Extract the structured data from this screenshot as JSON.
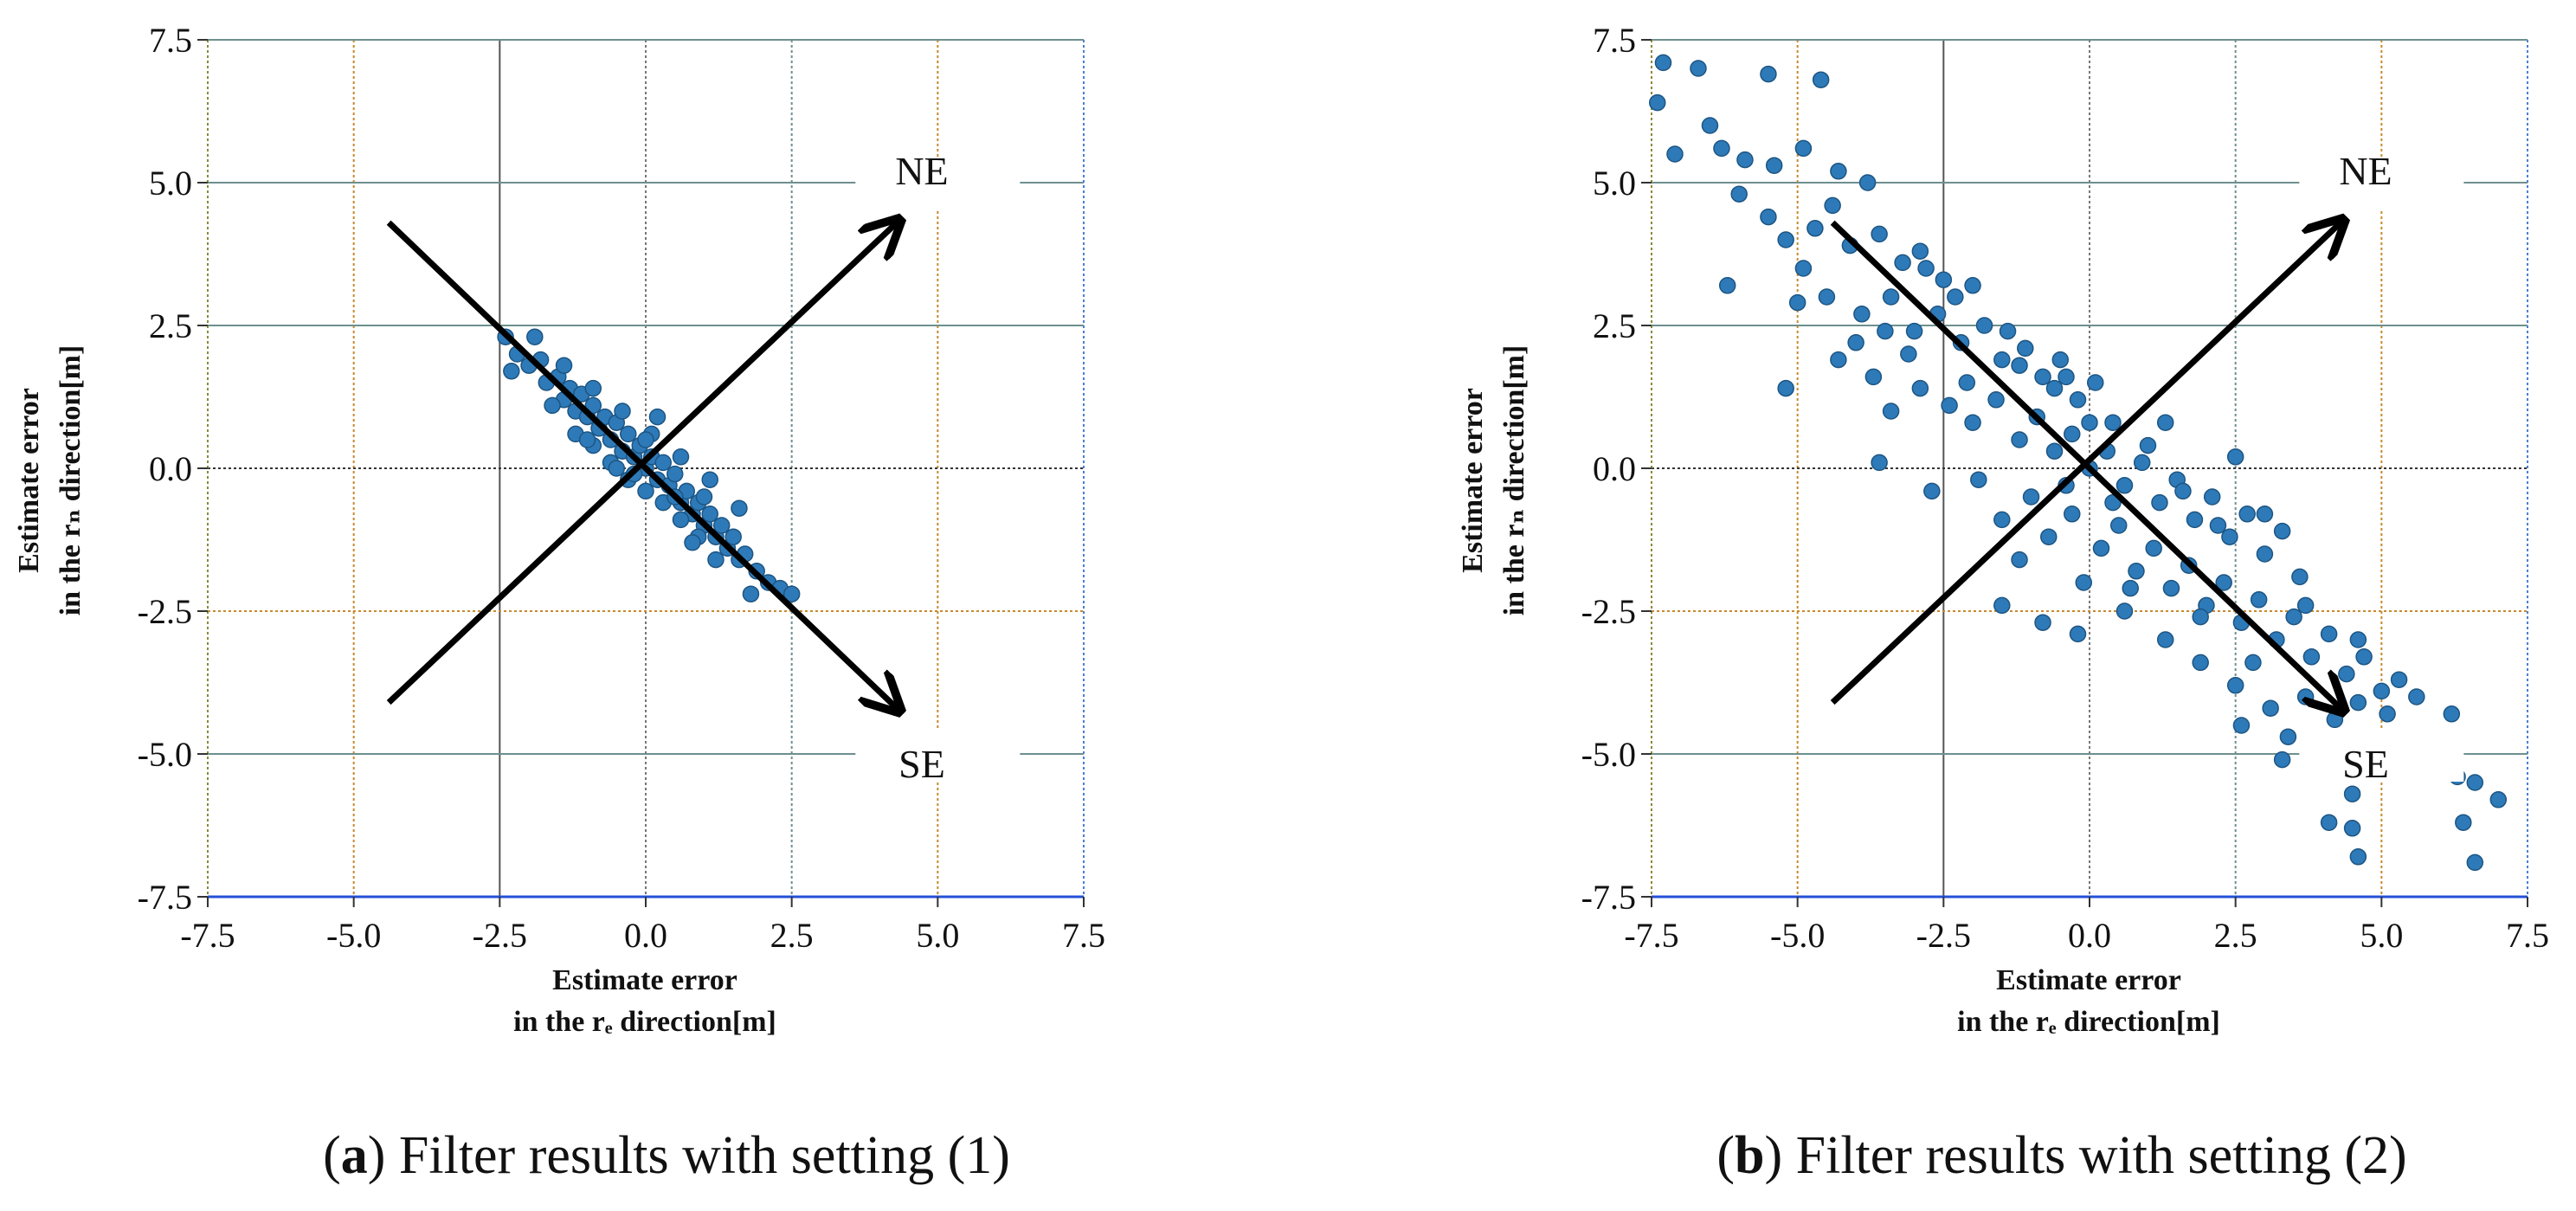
{
  "chart_data": [
    {
      "type": "scatter",
      "panel": "a",
      "caption_letter": "a",
      "caption_text": ") Filter results with setting (1)",
      "caption_open": "(",
      "xlabel_line1": "Estimate error",
      "xlabel_line2": "in the rₑ direction[m]",
      "ylabel_line1": "Estimate error",
      "ylabel_line2": "in the rₙ direction[m]",
      "xlim": [
        -7.5,
        7.5
      ],
      "ylim": [
        -7.5,
        7.5
      ],
      "ticks": [
        -7.5,
        -5.0,
        -2.5,
        0.0,
        2.5,
        5.0,
        7.5
      ],
      "tick_labels": [
        "-7.5",
        "-5.0",
        "-2.5",
        "0.0",
        "2.5",
        "5.0",
        "7.5"
      ],
      "direction_labels": {
        "ne": "NE",
        "se": "SE"
      },
      "ne_arrow": {
        "from": [
          -4.4,
          -4.1
        ],
        "to": [
          4.3,
          4.3
        ]
      },
      "se_arrow": {
        "from": [
          -4.4,
          4.3
        ],
        "to": [
          4.3,
          -4.2
        ]
      },
      "points": [
        [
          -2.4,
          2.3
        ],
        [
          -2.2,
          2.0
        ],
        [
          -2.0,
          1.8
        ],
        [
          -1.8,
          1.9
        ],
        [
          -1.7,
          1.5
        ],
        [
          -1.5,
          1.6
        ],
        [
          -1.4,
          1.2
        ],
        [
          -1.3,
          1.4
        ],
        [
          -1.2,
          1.0
        ],
        [
          -1.1,
          1.3
        ],
        [
          -1.0,
          0.9
        ],
        [
          -0.9,
          1.1
        ],
        [
          -0.8,
          0.7
        ],
        [
          -0.7,
          0.9
        ],
        [
          -0.6,
          0.5
        ],
        [
          -0.5,
          0.8
        ],
        [
          -0.4,
          0.3
        ],
        [
          -0.3,
          0.6
        ],
        [
          -0.2,
          0.2
        ],
        [
          -0.1,
          0.4
        ],
        [
          0.0,
          0.0
        ],
        [
          0.1,
          0.2
        ],
        [
          0.2,
          -0.2
        ],
        [
          0.3,
          0.1
        ],
        [
          0.4,
          -0.3
        ],
        [
          0.5,
          -0.1
        ],
        [
          0.6,
          -0.6
        ],
        [
          0.7,
          -0.4
        ],
        [
          0.8,
          -0.8
        ],
        [
          0.9,
          -0.6
        ],
        [
          1.0,
          -1.0
        ],
        [
          1.1,
          -0.8
        ],
        [
          1.2,
          -1.2
        ],
        [
          1.3,
          -1.0
        ],
        [
          1.4,
          -1.4
        ],
        [
          1.5,
          -1.2
        ],
        [
          1.6,
          -1.6
        ],
        [
          1.7,
          -1.5
        ],
        [
          1.9,
          -1.8
        ],
        [
          2.1,
          -2.0
        ],
        [
          2.3,
          -2.1
        ],
        [
          2.5,
          -2.2
        ],
        [
          -1.6,
          1.1
        ],
        [
          -1.2,
          0.6
        ],
        [
          -0.9,
          0.4
        ],
        [
          -0.6,
          0.1
        ],
        [
          -0.3,
          -0.2
        ],
        [
          0.0,
          -0.4
        ],
        [
          0.3,
          -0.6
        ],
        [
          0.6,
          -0.9
        ],
        [
          0.9,
          -1.2
        ],
        [
          1.2,
          -1.6
        ],
        [
          -1.9,
          2.3
        ],
        [
          -1.4,
          1.8
        ],
        [
          -0.9,
          1.4
        ],
        [
          -0.4,
          1.0
        ],
        [
          0.1,
          0.6
        ],
        [
          0.6,
          0.2
        ],
        [
          1.1,
          -0.2
        ],
        [
          1.6,
          -0.7
        ],
        [
          -0.5,
          0.0
        ],
        [
          0.0,
          0.5
        ],
        [
          0.5,
          -0.5
        ],
        [
          1.0,
          -0.5
        ],
        [
          -1.0,
          0.5
        ],
        [
          0.2,
          0.9
        ],
        [
          -0.2,
          -0.1
        ],
        [
          0.8,
          -1.3
        ],
        [
          1.8,
          -2.2
        ],
        [
          -2.3,
          1.7
        ]
      ]
    },
    {
      "type": "scatter",
      "panel": "b",
      "caption_letter": "b",
      "caption_text": ") Filter results with setting (2)",
      "caption_open": "(",
      "xlabel_line1": "Estimate error",
      "xlabel_line2": "in the rₑ direction[m]",
      "ylabel_line1": "Estimate error",
      "ylabel_line2": "in the rₙ direction[m]",
      "xlim": [
        -7.5,
        7.5
      ],
      "ylim": [
        -7.5,
        7.5
      ],
      "ticks": [
        -7.5,
        -5.0,
        -2.5,
        0.0,
        2.5,
        5.0,
        7.5
      ],
      "tick_labels": [
        "-7.5",
        "-5.0",
        "-2.5",
        "0.0",
        "2.5",
        "5.0",
        "7.5"
      ],
      "direction_labels": {
        "ne": "NE",
        "se": "SE"
      },
      "ne_arrow": {
        "from": [
          -4.4,
          -4.1
        ],
        "to": [
          4.3,
          4.3
        ]
      },
      "se_arrow": {
        "from": [
          -4.4,
          4.3
        ],
        "to": [
          4.3,
          -4.2
        ]
      },
      "points": [
        [
          -7.3,
          7.1
        ],
        [
          -6.7,
          7.0
        ],
        [
          -5.5,
          6.9
        ],
        [
          -4.6,
          6.8
        ],
        [
          -7.4,
          6.4
        ],
        [
          -6.5,
          6.0
        ],
        [
          -7.1,
          5.5
        ],
        [
          -6.3,
          5.6
        ],
        [
          -5.9,
          5.4
        ],
        [
          -5.4,
          5.3
        ],
        [
          -4.9,
          5.6
        ],
        [
          -4.3,
          5.2
        ],
        [
          -3.8,
          5.0
        ],
        [
          -6.0,
          4.8
        ],
        [
          -5.5,
          4.4
        ],
        [
          -5.2,
          4.0
        ],
        [
          -4.7,
          4.2
        ],
        [
          -4.4,
          4.6
        ],
        [
          -4.1,
          3.9
        ],
        [
          -3.6,
          4.1
        ],
        [
          -3.2,
          3.6
        ],
        [
          -2.9,
          3.8
        ],
        [
          -2.5,
          3.3
        ],
        [
          -4.9,
          3.5
        ],
        [
          -6.2,
          3.2
        ],
        [
          -5.0,
          2.9
        ],
        [
          -4.5,
          3.0
        ],
        [
          -3.9,
          2.7
        ],
        [
          -3.4,
          3.0
        ],
        [
          -3.0,
          2.4
        ],
        [
          -2.6,
          2.7
        ],
        [
          -2.2,
          2.2
        ],
        [
          -1.8,
          2.5
        ],
        [
          -1.5,
          1.9
        ],
        [
          -1.1,
          2.1
        ],
        [
          -0.8,
          1.6
        ],
        [
          -0.5,
          1.9
        ],
        [
          -0.2,
          1.2
        ],
        [
          0.1,
          1.5
        ],
        [
          -5.2,
          1.4
        ],
        [
          -4.3,
          1.9
        ],
        [
          -3.7,
          1.6
        ],
        [
          -3.4,
          1.0
        ],
        [
          -2.9,
          1.4
        ],
        [
          -2.4,
          1.1
        ],
        [
          -2.0,
          0.8
        ],
        [
          -1.6,
          1.2
        ],
        [
          -1.2,
          0.5
        ],
        [
          -0.9,
          0.9
        ],
        [
          -0.6,
          0.3
        ],
        [
          -0.3,
          0.6
        ],
        [
          0.0,
          0.0
        ],
        [
          0.3,
          0.3
        ],
        [
          0.6,
          -0.3
        ],
        [
          0.9,
          0.1
        ],
        [
          1.2,
          -0.6
        ],
        [
          1.5,
          -0.2
        ],
        [
          1.8,
          -0.9
        ],
        [
          2.1,
          -0.5
        ],
        [
          2.4,
          -1.2
        ],
        [
          2.7,
          -0.8
        ],
        [
          3.0,
          -1.5
        ],
        [
          3.3,
          -1.1
        ],
        [
          3.6,
          -1.9
        ],
        [
          -3.6,
          0.1
        ],
        [
          -2.7,
          -0.4
        ],
        [
          -1.9,
          -0.2
        ],
        [
          -1.5,
          -0.9
        ],
        [
          -1.0,
          -0.5
        ],
        [
          -0.7,
          -1.2
        ],
        [
          -0.3,
          -0.8
        ],
        [
          0.2,
          -1.4
        ],
        [
          0.5,
          -1.0
        ],
        [
          0.8,
          -1.8
        ],
        [
          1.1,
          -1.4
        ],
        [
          1.4,
          -2.1
        ],
        [
          1.7,
          -1.7
        ],
        [
          2.0,
          -2.4
        ],
        [
          2.3,
          -2.0
        ],
        [
          2.6,
          -2.7
        ],
        [
          2.9,
          -2.3
        ],
        [
          3.2,
          -3.0
        ],
        [
          3.5,
          -2.6
        ],
        [
          3.8,
          -3.3
        ],
        [
          4.1,
          -2.9
        ],
        [
          4.4,
          -3.6
        ],
        [
          4.7,
          -3.3
        ],
        [
          5.0,
          -3.9
        ],
        [
          5.3,
          -3.7
        ],
        [
          -1.5,
          -2.4
        ],
        [
          -0.8,
          -2.7
        ],
        [
          -0.2,
          -2.9
        ],
        [
          0.6,
          -2.5
        ],
        [
          1.3,
          -3.0
        ],
        [
          1.9,
          -3.4
        ],
        [
          2.5,
          -3.8
        ],
        [
          3.1,
          -4.2
        ],
        [
          3.7,
          -4.0
        ],
        [
          4.2,
          -4.4
        ],
        [
          4.6,
          -4.1
        ],
        [
          5.1,
          -4.3
        ],
        [
          5.6,
          -4.0
        ],
        [
          6.2,
          -4.3
        ],
        [
          2.6,
          -4.5
        ],
        [
          3.4,
          -4.7
        ],
        [
          3.3,
          -5.1
        ],
        [
          4.3,
          -5.2
        ],
        [
          4.5,
          -5.7
        ],
        [
          6.3,
          -5.4
        ],
        [
          6.6,
          -5.5
        ],
        [
          7.0,
          -5.8
        ],
        [
          4.1,
          -6.2
        ],
        [
          4.5,
          -6.3
        ],
        [
          6.4,
          -6.2
        ],
        [
          4.6,
          -6.8
        ],
        [
          6.6,
          -6.9
        ],
        [
          -2.3,
          3.0
        ],
        [
          -1.4,
          2.4
        ],
        [
          -0.4,
          1.6
        ],
        [
          0.4,
          0.8
        ],
        [
          1.0,
          0.4
        ],
        [
          1.6,
          -0.4
        ],
        [
          2.2,
          -1.0
        ],
        [
          0.0,
          0.8
        ],
        [
          -0.6,
          1.4
        ],
        [
          -1.2,
          1.8
        ],
        [
          -2.0,
          3.2
        ],
        [
          -2.8,
          3.5
        ],
        [
          -3.5,
          2.4
        ],
        [
          -4.0,
          2.2
        ],
        [
          0.4,
          -0.6
        ],
        [
          -0.4,
          -0.3
        ],
        [
          1.9,
          -2.6
        ],
        [
          2.8,
          -3.4
        ],
        [
          3.7,
          -2.4
        ],
        [
          4.6,
          -3.0
        ],
        [
          -0.1,
          -2.0
        ],
        [
          -1.2,
          -1.6
        ],
        [
          0.7,
          -2.1
        ],
        [
          3.0,
          -0.8
        ],
        [
          2.5,
          0.2
        ],
        [
          1.3,
          0.8
        ],
        [
          -2.1,
          1.5
        ],
        [
          -3.1,
          2.0
        ]
      ]
    }
  ]
}
